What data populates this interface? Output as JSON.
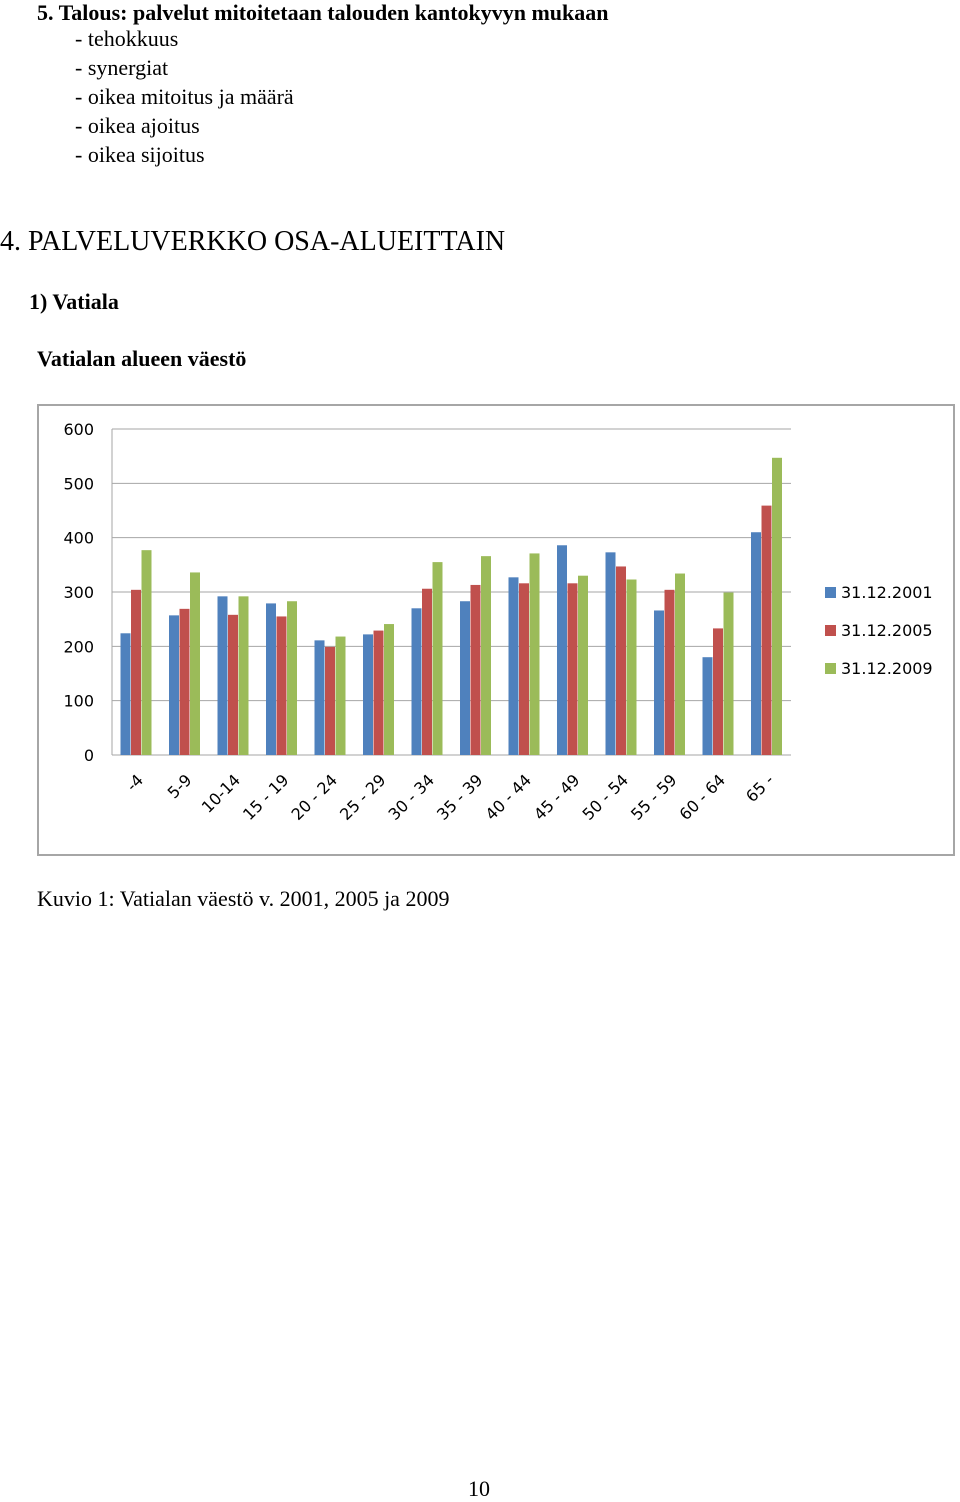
{
  "section5": {
    "title": "5. Talous: palvelut mitoitetaan talouden kantokyvyn mukaan",
    "bullets": [
      "- tehokkuus",
      "- synergiat",
      "- oikea mitoitus ja määrä",
      "- oikea ajoitus",
      "- oikea sijoitus"
    ]
  },
  "section4": {
    "title": "4. PALVELUVERKKO OSA-ALUEITTAIN",
    "subsection": "1)  Vatiala",
    "chart_heading": "Vatialan alueen väestö"
  },
  "caption": "Kuvio 1: Vatialan väestö v. 2001, 2005 ja 2009",
  "page_number": "10",
  "chart_data": {
    "type": "bar",
    "title": "",
    "xlabel": "",
    "ylabel": "",
    "ylim": [
      0,
      600
    ],
    "yticks": [
      0,
      100,
      200,
      300,
      400,
      500,
      600
    ],
    "grid": true,
    "legend_position": "right",
    "categories": [
      "-4",
      "5-9",
      "10-14",
      "15 - 19",
      "20 - 24",
      "25 - 29",
      "30 - 34",
      "35 - 39",
      "40 - 44",
      "45 - 49",
      "50 - 54",
      "55 - 59",
      "60 - 64",
      "65 -"
    ],
    "series": [
      {
        "name": "31.12.2001",
        "color": "#4f81bd",
        "values": [
          224,
          257,
          292,
          279,
          211,
          222,
          270,
          283,
          327,
          386,
          373,
          266,
          180,
          410
        ]
      },
      {
        "name": "31.12.2005",
        "color": "#c0504d",
        "values": [
          304,
          269,
          258,
          255,
          199,
          229,
          306,
          313,
          316,
          316,
          347,
          304,
          233,
          459
        ]
      },
      {
        "name": "31.12.2009",
        "color": "#9bbb59",
        "values": [
          377,
          336,
          292,
          283,
          218,
          241,
          355,
          366,
          371,
          330,
          323,
          334,
          299,
          547
        ]
      }
    ]
  }
}
